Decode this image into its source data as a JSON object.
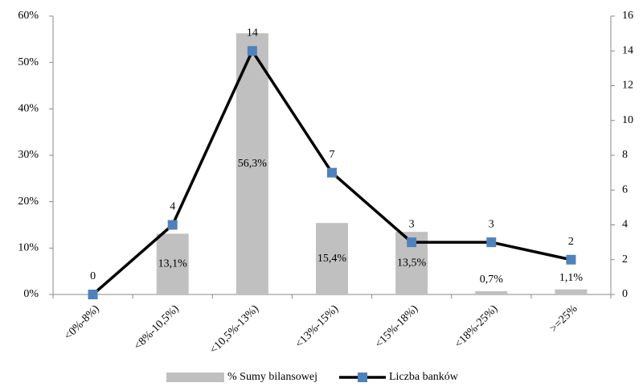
{
  "chart_data": {
    "type": "bar-line",
    "categories": [
      "<0%-8%)",
      "<8%-10,5%)",
      "<10,5%-13%)",
      "<13%-15%)",
      "<15%-18%)",
      "<18%-25%)",
      ">=25%"
    ],
    "series": [
      {
        "name": "% Sumy bilansowej",
        "type": "bar",
        "color": "#c0c0c0",
        "values": [
          0,
          13.1,
          56.3,
          15.4,
          13.5,
          0.7,
          1.1
        ],
        "value_labels": [
          null,
          "13,1%",
          "56,3%",
          "15,4%",
          "13,5%",
          "0,7%",
          "1,1%"
        ]
      },
      {
        "name": "Liczba banków",
        "type": "line",
        "axis": "y2",
        "color": "#000000",
        "marker_color": "#4f81bd",
        "values": [
          0,
          4,
          14,
          7,
          3,
          3,
          2
        ]
      }
    ],
    "ylim": [
      0,
      60
    ],
    "yticks": [
      {
        "value": 0,
        "label": "0%"
      },
      {
        "value": 10,
        "label": "10%"
      },
      {
        "value": 20,
        "label": "20%"
      },
      {
        "value": 30,
        "label": "30%"
      },
      {
        "value": 40,
        "label": "40%"
      },
      {
        "value": 50,
        "label": "50%"
      },
      {
        "value": 60,
        "label": "60%"
      }
    ],
    "y2lim": [
      0,
      16
    ],
    "y2ticks": [
      0,
      2,
      4,
      6,
      8,
      10,
      12,
      14,
      16
    ],
    "legend": "bottom"
  }
}
